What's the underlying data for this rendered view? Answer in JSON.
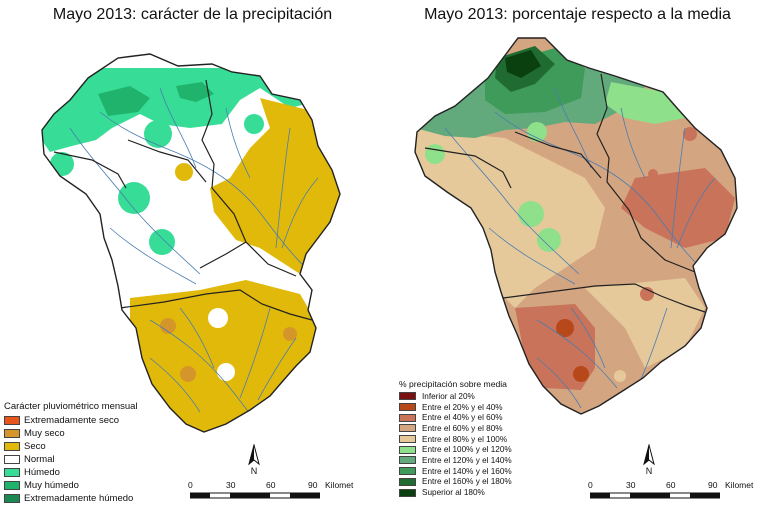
{
  "left": {
    "title": "Mayo 2013: carácter de la precipitación",
    "legend_title": "Carácter pluviométrico mensual",
    "legend": [
      {
        "label": "Extremadamente seco",
        "color": "#e8561c"
      },
      {
        "label": "Muy seco",
        "color": "#d4962a"
      },
      {
        "label": "Seco",
        "color": "#e0b90a"
      },
      {
        "label": "Normal",
        "color": "#ffffff"
      },
      {
        "label": "Húmedo",
        "color": "#37dd96"
      },
      {
        "label": "Muy húmedo",
        "color": "#1fb36b"
      },
      {
        "label": "Extremadamente húmedo",
        "color": "#1a8a52"
      }
    ]
  },
  "right": {
    "title": "Mayo 2013: porcentaje respecto a la media",
    "legend_title": "% precipitación sobre media",
    "legend": [
      {
        "label": "Inferior al 20%",
        "color": "#7b1010"
      },
      {
        "label": "Entre el 20% y el 40%",
        "color": "#b6481a"
      },
      {
        "label": "Entre el 40% y el 60%",
        "color": "#c8735a"
      },
      {
        "label": "Entre el 60% y el 80%",
        "color": "#d4a581"
      },
      {
        "label": "Entre el 80% y el 100%",
        "color": "#e6c99b"
      },
      {
        "label": "Entre el 100% y el 120%",
        "color": "#8fe08b"
      },
      {
        "label": "Entre el 120% y el 140%",
        "color": "#62a97c"
      },
      {
        "label": "Entre el 140% y el 160%",
        "color": "#3f9b59"
      },
      {
        "label": "Entre el 160% y el 180%",
        "color": "#1f6b32"
      },
      {
        "label": "Superior al 180%",
        "color": "#0a4010"
      }
    ]
  },
  "north_label": "N",
  "scale": {
    "ticks": [
      "0",
      "30",
      "60",
      "90"
    ],
    "unit": "Kilomet"
  },
  "colors": {
    "river": "#4a7db0",
    "border": "#222222"
  }
}
